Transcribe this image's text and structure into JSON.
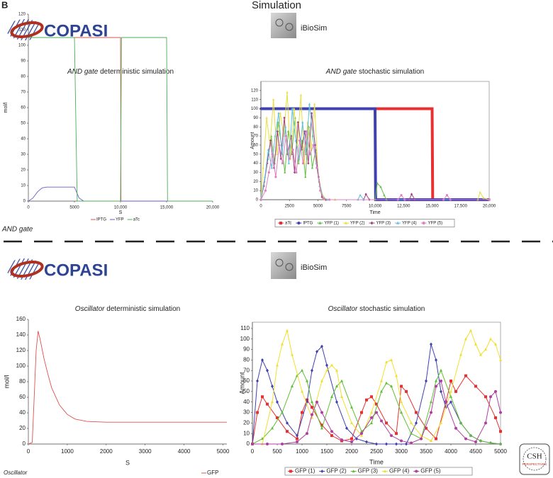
{
  "figure": {
    "panel": "B",
    "title": "Simulation",
    "sections": [
      {
        "label": "AND gate",
        "left_tool": "COPASI",
        "right_tool": "iBioSim"
      },
      {
        "label": "Oscillator",
        "left_tool": "COPASI",
        "right_tool": "iBioSim"
      }
    ],
    "logo": {
      "top": "CSH",
      "bottom": "PERSPECTIVES"
    }
  },
  "chart_data": [
    {
      "type": "line",
      "title_emphasis": "AND gate",
      "title": "deterministic simulation",
      "xlabel": "S",
      "ylabel": "mol/l",
      "frame": false,
      "grid": false,
      "legend": "bottom",
      "xlim": [
        0,
        20000
      ],
      "xticks": [
        0,
        5000,
        {
          "value": 10000,
          "label": "10,000"
        },
        {
          "value": 15000,
          "label": "15,000"
        },
        {
          "value": 20000,
          "label": "20,000"
        }
      ],
      "ylim": [
        0,
        120
      ],
      "yticks": [
        0,
        10,
        20,
        30,
        40,
        50,
        60,
        70,
        80,
        90,
        100,
        110,
        120
      ],
      "series": [
        {
          "name": "IPTG",
          "color": "#d9534f",
          "x": [
            0,
            10000,
            10050,
            20000
          ],
          "values": [
            105,
            105,
            0,
            0
          ]
        },
        {
          "name": "YFP",
          "color": "#6a5acd",
          "x": [
            0,
            500,
            1000,
            1500,
            2000,
            3000,
            5000,
            5500,
            6000,
            20000
          ],
          "values": [
            0,
            2,
            6,
            8.5,
            9,
            9,
            9,
            2,
            0,
            0
          ]
        },
        {
          "name": "aTc",
          "color": "#4caf50",
          "x": [
            0,
            5000,
            5300,
            10000,
            10100,
            15000,
            15100,
            20000
          ],
          "values": [
            105,
            105,
            0,
            0,
            105,
            105,
            0,
            0
          ]
        }
      ]
    },
    {
      "type": "line",
      "title_emphasis": "AND gate",
      "title": "stochastic simulation",
      "xlabel": "Time",
      "ylabel": "Amount",
      "frame": true,
      "grid": false,
      "legend": "bottom",
      "xlim": [
        0,
        20000
      ],
      "xticks": [
        0,
        2500,
        5000,
        7500,
        {
          "value": 10000,
          "label": "10,000"
        },
        {
          "value": 12500,
          "label": "12,500"
        },
        {
          "value": 15000,
          "label": "15,000"
        },
        {
          "value": 17500,
          "label": "17,500"
        },
        {
          "value": 20000,
          "label": "20,000"
        }
      ],
      "ylim": [
        0,
        130
      ],
      "yticks": [
        0,
        10,
        20,
        30,
        40,
        50,
        60,
        70,
        80,
        90,
        100,
        110,
        120
      ],
      "series": [
        {
          "name": "aTc",
          "color": "#e83030",
          "marker": "square",
          "x": [
            0,
            15000,
            15050,
            20000
          ],
          "values": [
            100,
            100,
            0,
            0
          ]
        },
        {
          "name": "IPTG",
          "color": "#4040b0",
          "marker": "circle",
          "x": [
            0,
            10000,
            10050,
            20000
          ],
          "values": [
            100,
            100,
            0,
            0
          ]
        },
        {
          "name": "YFP (1)",
          "color": "#60c040",
          "marker": "triangle",
          "x": [
            0,
            300,
            600,
            900,
            1200,
            1500,
            1800,
            2100,
            2400,
            2700,
            3000,
            3300,
            3600,
            3900,
            4200,
            4500,
            4800,
            5100,
            5400,
            5700,
            6500,
            10000,
            10200,
            10500,
            10800,
            11000,
            20000
          ],
          "values": [
            0,
            20,
            45,
            70,
            40,
            85,
            60,
            30,
            75,
            50,
            90,
            40,
            65,
            25,
            80,
            35,
            55,
            20,
            5,
            0,
            0,
            0,
            18,
            14,
            5,
            0,
            0
          ]
        },
        {
          "name": "YFP (2)",
          "color": "#e8e040",
          "marker": "triangle",
          "x": [
            0,
            200,
            500,
            800,
            1100,
            1400,
            1700,
            2000,
            2300,
            2600,
            2900,
            3200,
            3500,
            3800,
            4100,
            4400,
            4700,
            5000,
            5300,
            5600,
            6500,
            19000,
            19200,
            19500,
            20000
          ],
          "values": [
            0,
            35,
            90,
            60,
            110,
            50,
            95,
            70,
            118,
            45,
            100,
            60,
            115,
            40,
            85,
            55,
            105,
            30,
            8,
            0,
            0,
            0,
            8,
            2,
            0
          ]
        },
        {
          "name": "YFP (3)",
          "color": "#a04080",
          "marker": "diamond",
          "x": [
            0,
            250,
            550,
            850,
            1150,
            1450,
            1750,
            2050,
            2350,
            2650,
            2950,
            3250,
            3550,
            3850,
            4150,
            4450,
            4750,
            5050,
            5350,
            5700,
            9000,
            9200,
            9500,
            13000,
            13200,
            13500,
            20000
          ],
          "values": [
            0,
            15,
            40,
            65,
            35,
            75,
            45,
            90,
            50,
            70,
            30,
            85,
            55,
            75,
            40,
            95,
            60,
            25,
            3,
            0,
            0,
            6,
            0,
            0,
            6,
            0,
            0
          ]
        },
        {
          "name": "YFP (4)",
          "color": "#60c0e0",
          "marker": "triangle",
          "x": [
            0,
            350,
            650,
            950,
            1250,
            1550,
            1850,
            2150,
            2450,
            2750,
            3050,
            3350,
            3650,
            3950,
            4250,
            4550,
            4850,
            5150,
            5450,
            5800,
            8500,
            8700,
            9000,
            20000
          ],
          "values": [
            0,
            25,
            55,
            35,
            70,
            95,
            50,
            80,
            40,
            100,
            65,
            45,
            85,
            50,
            105,
            70,
            40,
            15,
            2,
            0,
            0,
            5,
            0,
            0
          ]
        },
        {
          "name": "YFP (5)",
          "color": "#e080c0",
          "marker": "circle",
          "x": [
            0,
            400,
            700,
            1000,
            1300,
            1600,
            1900,
            2200,
            2500,
            2800,
            3100,
            3400,
            3700,
            4000,
            4300,
            4600,
            4900,
            5200,
            5500,
            6000,
            12000,
            12300,
            12600,
            16000,
            16300,
            16600,
            20000
          ],
          "values": [
            0,
            10,
            30,
            50,
            25,
            60,
            40,
            70,
            45,
            55,
            30,
            65,
            40,
            75,
            50,
            60,
            35,
            10,
            1,
            0,
            0,
            5,
            0,
            0,
            5,
            0,
            0
          ]
        }
      ]
    },
    {
      "type": "line",
      "title_emphasis": "Oscillator",
      "title": "deterministic simulation",
      "xlabel": "S",
      "ylabel": "mol/l",
      "frame": false,
      "grid": false,
      "legend": "bottom",
      "xlim": [
        0,
        5100
      ],
      "xticks": [
        0,
        1000,
        2000,
        3000,
        4000,
        5000
      ],
      "ylim": [
        0,
        160
      ],
      "yticks": [
        0,
        20,
        40,
        60,
        80,
        100,
        120,
        140,
        160
      ],
      "series": [
        {
          "name": "GFP",
          "color": "#e05050",
          "x": [
            0,
            100,
            150,
            200,
            250,
            300,
            400,
            500,
            600,
            800,
            1000,
            1200,
            1500,
            2000,
            5100
          ],
          "values": [
            0,
            2,
            60,
            120,
            145,
            135,
            110,
            90,
            72,
            50,
            38,
            32,
            29,
            28,
            28
          ]
        }
      ]
    },
    {
      "type": "line",
      "title_emphasis": "Oscillator",
      "title": "stochastic simulation",
      "xlabel": "Time",
      "ylabel": "Amount",
      "frame": true,
      "grid": false,
      "legend": "bottom",
      "xlim": [
        0,
        5000
      ],
      "xticks": [
        0,
        500,
        1000,
        1500,
        2000,
        2500,
        3000,
        3500,
        4000,
        4500,
        5000
      ],
      "ylim": [
        0,
        116
      ],
      "yticks": [
        0,
        10,
        20,
        30,
        40,
        50,
        60,
        70,
        80,
        90,
        100,
        110
      ],
      "series": [
        {
          "name": "GFP (1)",
          "color": "#e83030",
          "marker": "square",
          "x": [
            0,
            100,
            200,
            300,
            500,
            700,
            900,
            1000,
            1100,
            1200,
            1400,
            1600,
            1800,
            2000,
            2200,
            2300,
            2400,
            2500,
            2700,
            2900,
            3000,
            3100,
            3300,
            3500,
            3700,
            3900,
            4000,
            4100,
            4300,
            4500,
            4700,
            4900,
            5000
          ],
          "values": [
            0,
            30,
            45,
            38,
            25,
            12,
            5,
            30,
            42,
            35,
            18,
            8,
            3,
            5,
            30,
            42,
            45,
            38,
            20,
            10,
            55,
            50,
            30,
            15,
            5,
            40,
            60,
            50,
            65,
            55,
            45,
            25,
            12
          ]
        },
        {
          "name": "GFP (2)",
          "color": "#4040b0",
          "marker": "diamond",
          "x": [
            0,
            100,
            200,
            300,
            400,
            500,
            700,
            900,
            1100,
            1200,
            1300,
            1400,
            1500,
            1700,
            1900,
            2100,
            2300,
            2500,
            2700,
            2900,
            3100,
            3300,
            3500,
            3600,
            3700,
            3800,
            3900,
            4000,
            4200,
            4400,
            4600,
            4800,
            5000
          ],
          "values": [
            0,
            60,
            80,
            70,
            55,
            40,
            20,
            8,
            40,
            70,
            88,
            93,
            75,
            40,
            15,
            5,
            2,
            0,
            0,
            0,
            0,
            20,
            60,
            95,
            80,
            50,
            35,
            40,
            20,
            8,
            3,
            1,
            0
          ]
        },
        {
          "name": "GFP (3)",
          "color": "#60c030",
          "marker": "triangle",
          "x": [
            0,
            200,
            400,
            600,
            800,
            900,
            1000,
            1100,
            1200,
            1400,
            1600,
            1700,
            1800,
            2000,
            2200,
            2400,
            2600,
            2700,
            2800,
            3000,
            3200,
            3400,
            3600,
            3700,
            3800,
            4000,
            4200,
            4400,
            4600,
            4800,
            5000
          ],
          "values": [
            0,
            5,
            15,
            30,
            55,
            65,
            70,
            60,
            40,
            15,
            45,
            55,
            60,
            35,
            12,
            20,
            50,
            58,
            55,
            30,
            10,
            5,
            40,
            60,
            70,
            45,
            20,
            8,
            3,
            1,
            0
          ]
        },
        {
          "name": "GFP (4)",
          "color": "#f0e030",
          "marker": "triangle",
          "x": [
            0,
            200,
            400,
            500,
            600,
            700,
            800,
            1000,
            1200,
            1400,
            1500,
            1600,
            1700,
            1800,
            2000,
            2200,
            2400,
            2600,
            2700,
            2800,
            2900,
            3000,
            3200,
            3400,
            3600,
            3800,
            4000,
            4200,
            4300,
            4400,
            4500,
            4600,
            4700,
            4800,
            4900,
            5000
          ],
          "values": [
            0,
            0,
            40,
            75,
            95,
            108,
            85,
            50,
            25,
            60,
            70,
            75,
            70,
            45,
            20,
            8,
            30,
            60,
            78,
            80,
            65,
            40,
            20,
            8,
            3,
            20,
            50,
            85,
            100,
            108,
            95,
            85,
            90,
            100,
            95,
            80
          ]
        },
        {
          "name": "GFP (5)",
          "color": "#b040a0",
          "marker": "circle",
          "x": [
            0,
            300,
            600,
            900,
            1100,
            1200,
            1300,
            1400,
            1600,
            1800,
            2000,
            2200,
            2400,
            2500,
            2600,
            2800,
            3000,
            3200,
            3400,
            3600,
            3700,
            3800,
            3900,
            4100,
            4300,
            4500,
            4700,
            4800,
            4900,
            5000
          ],
          "values": [
            0,
            0,
            0,
            2,
            10,
            28,
            40,
            30,
            12,
            4,
            2,
            10,
            25,
            30,
            22,
            8,
            3,
            1,
            5,
            30,
            55,
            60,
            40,
            15,
            5,
            2,
            20,
            45,
            50,
            30
          ]
        }
      ]
    }
  ]
}
